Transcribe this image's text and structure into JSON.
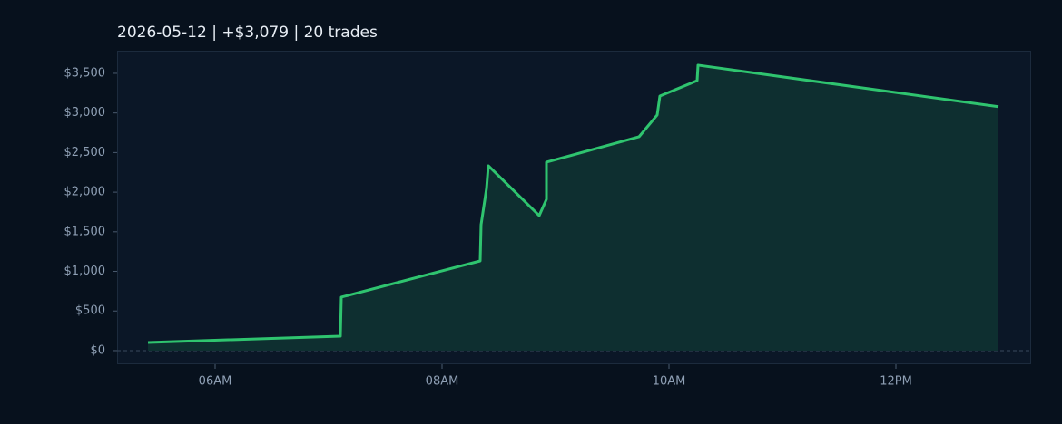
{
  "chart_data": {
    "type": "area",
    "title": "2026-05-12  |  +$3,079  |  20 trades",
    "x": [
      5.408,
      7.104,
      7.112,
      8.336,
      8.344,
      8.392,
      8.408,
      8.856,
      8.92,
      8.92,
      9.736,
      9.896,
      9.92,
      10.248,
      10.256,
      12.904
    ],
    "values": [
      103,
      183,
      675,
      1132,
      1590,
      2047,
      2333,
      1704,
      1910,
      2379,
      2699,
      2974,
      3214,
      3408,
      3603,
      3079
    ],
    "color": "#2fc46f",
    "fill_color": "#0e2f30",
    "xlim": [
      5.136,
      13.184
    ],
    "xticks": [
      {
        "value": 6,
        "label": "06AM"
      },
      {
        "value": 8,
        "label": "08AM"
      },
      {
        "value": 10,
        "label": "10AM"
      },
      {
        "value": 12,
        "label": "12PM"
      }
    ],
    "ylim": [
      -172,
      3774
    ],
    "yticks": [
      {
        "value": 0,
        "label": "$0"
      },
      {
        "value": 500,
        "label": "$500"
      },
      {
        "value": 1000,
        "label": "$1,000"
      },
      {
        "value": 1500,
        "label": "$1,500"
      },
      {
        "value": 2000,
        "label": "$2,000"
      },
      {
        "value": 2500,
        "label": "$2,500"
      },
      {
        "value": 3000,
        "label": "$3,000"
      },
      {
        "value": 3500,
        "label": "$3,500"
      }
    ],
    "zeroline": true
  }
}
